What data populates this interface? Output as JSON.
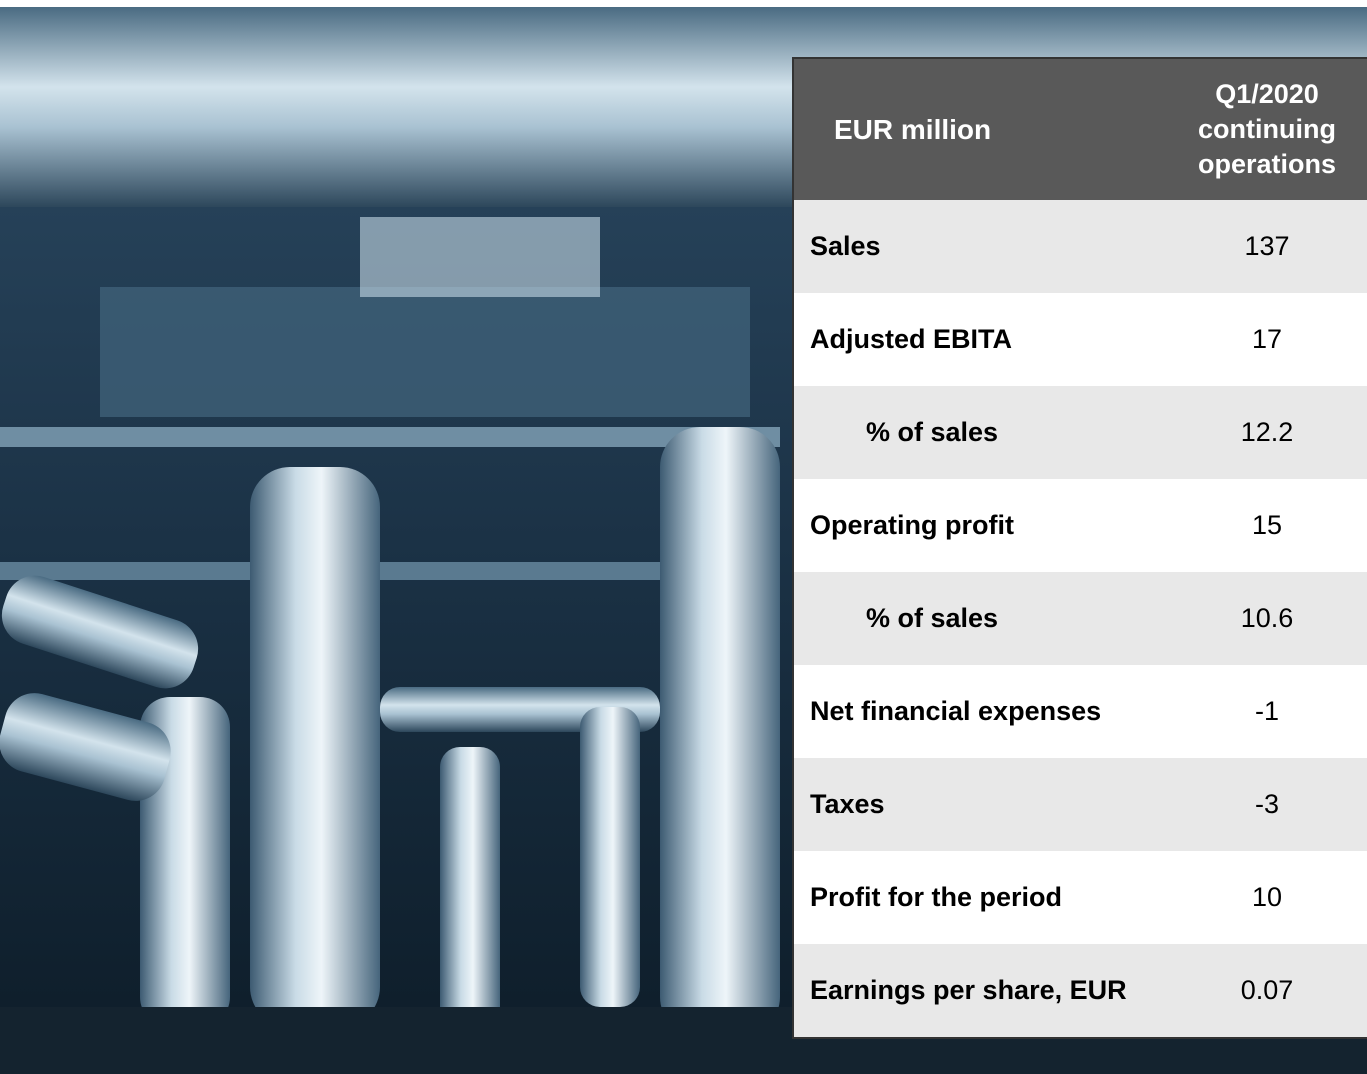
{
  "table": {
    "header": [
      "EUR million",
      "Q1/2020 continuing operations"
    ],
    "rows": [
      [
        "Sales",
        "137"
      ],
      [
        "Adjusted EBITA",
        "17"
      ],
      [
        "% of sales",
        "12.2"
      ],
      [
        "Operating profit",
        "15"
      ],
      [
        "% of sales",
        "10.6"
      ],
      [
        "Net financial expenses",
        "-1"
      ],
      [
        "Taxes",
        "-3"
      ],
      [
        "Profit for the period",
        "10"
      ],
      [
        "Earnings per share, EUR",
        "0.07"
      ]
    ]
  }
}
